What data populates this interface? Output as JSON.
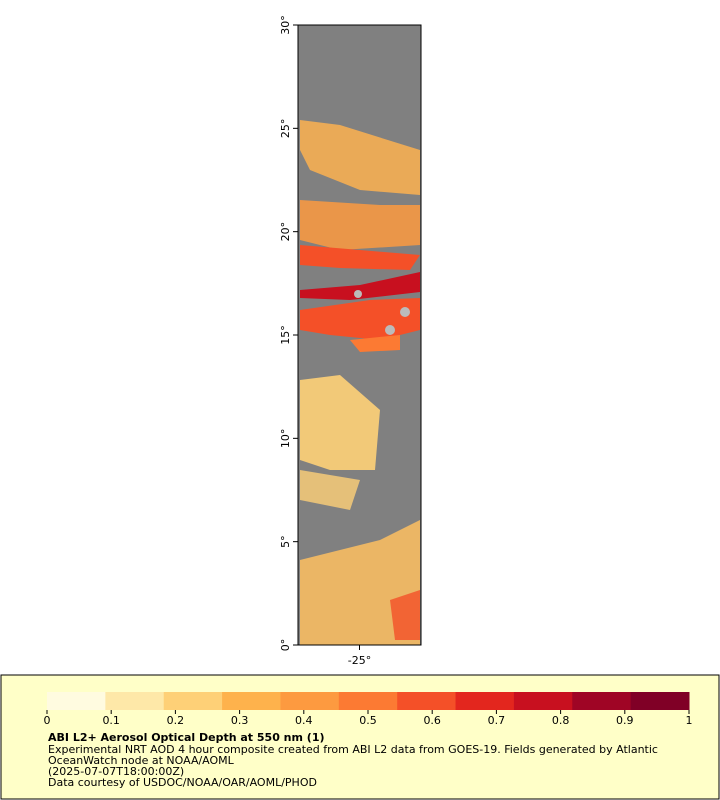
{
  "map": {
    "xlim": [
      -28,
      -22
    ],
    "ylim": [
      0,
      30
    ],
    "xticks": [
      {
        "value": -25,
        "label": "-25°"
      }
    ],
    "yticks": [
      {
        "value": 0,
        "label": "0°"
      },
      {
        "value": 5,
        "label": "5°"
      },
      {
        "value": 10,
        "label": "10°"
      },
      {
        "value": 15,
        "label": "15°"
      },
      {
        "value": 20,
        "label": "20°"
      },
      {
        "value": 25,
        "label": "25°"
      },
      {
        "value": 30,
        "label": "30°"
      }
    ]
  },
  "colorbar": {
    "lim": [
      0,
      1
    ],
    "ticks": [
      0,
      0.1,
      0.2,
      0.3,
      0.4,
      0.5,
      0.6,
      0.7,
      0.8,
      0.9,
      1
    ],
    "colors": [
      "#fffbe0",
      "#fee8a8",
      "#fed077",
      "#feb24c",
      "#fd9a40",
      "#fc7a33",
      "#f45028",
      "#e3261e",
      "#c8101f",
      "#9f0525",
      "#800026"
    ]
  },
  "caption": {
    "title": "ABI L2+ Aerosol Optical Depth at 550 nm (1)",
    "lines": [
      "Experimental NRT AOD 4 hour composite created from ABI L2 data from GOES-19. Fields generated by Atlantic",
      "OceanWatch node at NOAA/AOML",
      "(2025-07-07T18:00:00Z)",
      "Data courtesy of USDOC/NOAA/OAR/AOML/PHOD"
    ]
  }
}
